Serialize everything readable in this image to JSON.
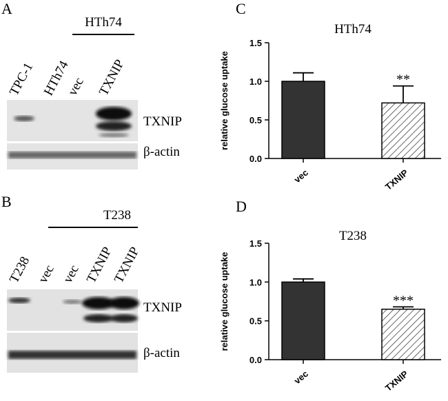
{
  "panels": [
    {
      "label": "A",
      "group": "HTh74",
      "lanes": [
        "TPC-1",
        "HTh74",
        "vec",
        "TXNIP"
      ],
      "bands": [
        "TXNIP",
        "β-actin"
      ]
    },
    {
      "label": "B",
      "group": "T238",
      "lanes": [
        "T238",
        "vec",
        "vec",
        "TXNIP",
        "TXNIP"
      ],
      "bands": [
        "TXNIP",
        "β-actin"
      ]
    }
  ],
  "chart_data": [
    {
      "type": "bar",
      "panel": "C",
      "title": "HTh74",
      "y_label": "relative glucose uptake",
      "categories": [
        "vec",
        "TXNIP"
      ],
      "values": [
        1.0,
        0.72
      ],
      "errors": [
        0.11,
        0.22
      ],
      "significance": [
        null,
        "**"
      ],
      "colors": [
        "#333333",
        "#ffffff"
      ],
      "ylim": [
        0,
        1.5
      ],
      "yticks": [
        {
          "value": 0,
          "label": "0.0"
        },
        0.5,
        {
          "value": 1,
          "label": "1.0"
        },
        1.5
      ]
    },
    {
      "type": "bar",
      "panel": "D",
      "title": "T238",
      "y_label": "relative glucose uptake",
      "categories": [
        "vec",
        "TXNIP"
      ],
      "values": [
        1.0,
        0.65
      ],
      "errors": [
        0.04,
        0.03
      ],
      "significance": [
        null,
        "***"
      ],
      "colors": [
        "#333333",
        "#ffffff"
      ],
      "ylim": [
        0,
        1.5
      ],
      "yticks": [
        {
          "value": 0,
          "label": "0.0"
        },
        0.5,
        {
          "value": 1,
          "label": "1.0"
        },
        1.5
      ]
    }
  ]
}
